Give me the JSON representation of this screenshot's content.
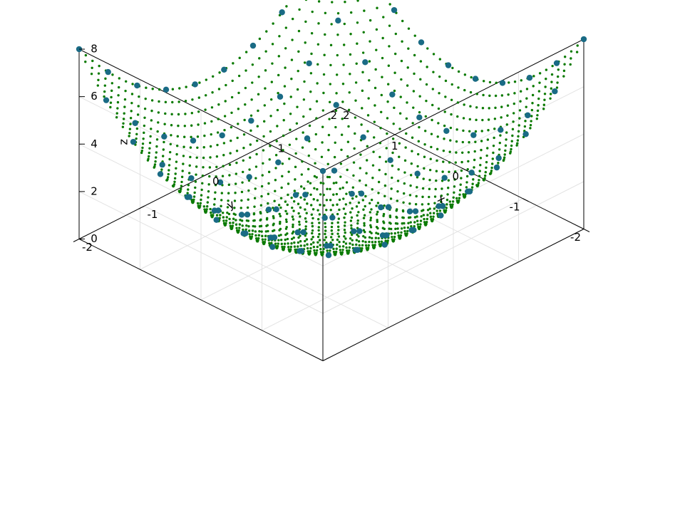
{
  "chart_data": {
    "type": "scatter",
    "dimensions": 3,
    "surface_formula": "z = x^2 + y^2",
    "x_axis": {
      "label": "x",
      "range": [
        -2,
        2
      ],
      "ticks": [
        -2,
        -1,
        0,
        1,
        2
      ],
      "tick_labels": [
        "-2",
        "-1",
        "0",
        "1",
        "2"
      ]
    },
    "y_axis": {
      "label": "y",
      "range": [
        -2,
        2
      ],
      "ticks": [
        -2,
        -1,
        0,
        1,
        2
      ],
      "tick_labels": [
        "-2",
        "-1",
        "0",
        "1",
        "2"
      ]
    },
    "z_axis": {
      "label": "z",
      "range": [
        0,
        8
      ],
      "ticks": [
        0,
        2,
        4,
        6,
        8
      ],
      "tick_labels": [
        "0",
        "2",
        "4",
        "6",
        "8"
      ]
    },
    "grid": true,
    "legend": "none",
    "series": [
      {
        "color": "#0a7a00",
        "marker": "small-dot",
        "grid_x": {
          "start": -2,
          "stop": 2,
          "count": 40
        },
        "grid_y": {
          "start": -2,
          "stop": 2,
          "count": 40
        }
      },
      {
        "color": "#1a6b85",
        "marker": "large-dot",
        "grid_x": {
          "start": -2,
          "stop": 2,
          "count": 10
        },
        "grid_y": {
          "start": -2,
          "stop": 2,
          "count": 10
        }
      }
    ]
  }
}
